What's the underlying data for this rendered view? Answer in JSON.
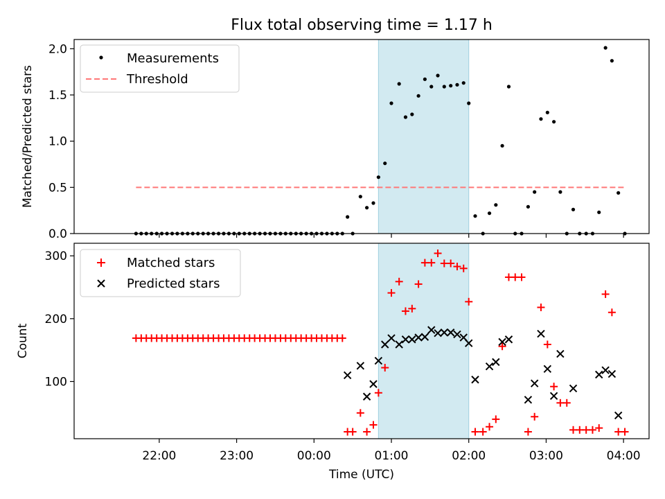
{
  "chart_data": {
    "type": "scatter",
    "title": "Flux total observing time = 1.17 h",
    "xlabel": "Time (UTC)",
    "x_unit": "hours since 00:00 UTC",
    "x_range": [
      -3.1,
      4.33
    ],
    "x_ticks": [
      {
        "value": -2,
        "label": "22:00"
      },
      {
        "value": -1,
        "label": "23:00"
      },
      {
        "value": 0,
        "label": "00:00"
      },
      {
        "value": 1,
        "label": "01:00"
      },
      {
        "value": 2,
        "label": "02:00"
      },
      {
        "value": 3,
        "label": "03:00"
      },
      {
        "value": 4,
        "label": "04:00"
      }
    ],
    "observing_window": [
      0.833,
      2.0
    ],
    "colors": {
      "matched": "#ff0000",
      "predicted": "#000000",
      "threshold": "#ff7777",
      "window": "#add8e6"
    },
    "top_panel": {
      "ylabel": "Matched/Predicted stars",
      "ylim": [
        0,
        2.1
      ],
      "y_ticks": [
        0.0,
        0.5,
        1.0,
        1.5,
        2.0
      ],
      "y_tick_labels": [
        "0.0",
        "0.5",
        "1.0",
        "1.5",
        "2.0"
      ],
      "legend": {
        "location": "upper left",
        "measurements_label": "Measurements",
        "threshold_label": "Threshold"
      },
      "threshold": {
        "value": 0.5,
        "x_start": -2.3,
        "x_end": 4.03
      },
      "measurements": [
        [
          -2.3,
          0
        ],
        [
          -2.233,
          0
        ],
        [
          -2.167,
          0
        ],
        [
          -2.1,
          0
        ],
        [
          -2.033,
          0
        ],
        [
          -1.967,
          0
        ],
        [
          -1.9,
          0
        ],
        [
          -1.833,
          0
        ],
        [
          -1.767,
          0
        ],
        [
          -1.7,
          0
        ],
        [
          -1.633,
          0
        ],
        [
          -1.567,
          0
        ],
        [
          -1.5,
          0
        ],
        [
          -1.433,
          0
        ],
        [
          -1.367,
          0
        ],
        [
          -1.3,
          0
        ],
        [
          -1.233,
          0
        ],
        [
          -1.167,
          0
        ],
        [
          -1.1,
          0
        ],
        [
          -1.033,
          0
        ],
        [
          -0.967,
          0
        ],
        [
          -0.9,
          0
        ],
        [
          -0.833,
          0
        ],
        [
          -0.767,
          0
        ],
        [
          -0.7,
          0
        ],
        [
          -0.633,
          0
        ],
        [
          -0.567,
          0
        ],
        [
          -0.5,
          0
        ],
        [
          -0.433,
          0
        ],
        [
          -0.367,
          0
        ],
        [
          -0.3,
          0
        ],
        [
          -0.233,
          0
        ],
        [
          -0.167,
          0
        ],
        [
          -0.1,
          0
        ],
        [
          -0.033,
          0
        ],
        [
          0.033,
          0
        ],
        [
          0.1,
          0
        ],
        [
          0.167,
          0
        ],
        [
          0.233,
          0
        ],
        [
          0.3,
          0
        ],
        [
          0.367,
          0
        ],
        [
          0.433,
          0.18
        ],
        [
          0.5,
          0
        ],
        [
          0.6,
          0.4
        ],
        [
          0.683,
          0.28
        ],
        [
          0.767,
          0.33
        ],
        [
          0.833,
          0.61
        ],
        [
          0.917,
          0.76
        ],
        [
          1.0,
          1.41
        ],
        [
          1.1,
          1.62
        ],
        [
          1.183,
          1.26
        ],
        [
          1.267,
          1.29
        ],
        [
          1.35,
          1.49
        ],
        [
          1.433,
          1.67
        ],
        [
          1.517,
          1.59
        ],
        [
          1.6,
          1.71
        ],
        [
          1.683,
          1.59
        ],
        [
          1.767,
          1.6
        ],
        [
          1.85,
          1.61
        ],
        [
          1.933,
          1.63
        ],
        [
          2.0,
          1.41
        ],
        [
          2.083,
          0.19
        ],
        [
          2.183,
          0
        ],
        [
          2.267,
          0.22
        ],
        [
          2.35,
          0.31
        ],
        [
          2.433,
          0.95
        ],
        [
          2.517,
          1.59
        ],
        [
          2.6,
          0
        ],
        [
          2.683,
          0
        ],
        [
          2.767,
          0.29
        ],
        [
          2.85,
          0.45
        ],
        [
          2.933,
          1.24
        ],
        [
          3.017,
          1.31
        ],
        [
          3.1,
          1.21
        ],
        [
          3.183,
          0.45
        ],
        [
          3.267,
          0
        ],
        [
          3.35,
          0.26
        ],
        [
          3.433,
          0
        ],
        [
          3.517,
          0
        ],
        [
          3.6,
          0
        ],
        [
          3.683,
          0.23
        ],
        [
          3.767,
          2.01
        ],
        [
          3.85,
          1.87
        ],
        [
          3.933,
          0.44
        ],
        [
          4.017,
          0
        ]
      ]
    },
    "bottom_panel": {
      "ylabel": "Count",
      "ylim": [
        9,
        320
      ],
      "y_ticks": [
        100,
        200,
        300
      ],
      "y_tick_labels": [
        "100",
        "200",
        "300"
      ],
      "legend": {
        "location": "upper left",
        "matched_label": "Matched stars",
        "predicted_label": "Predicted stars"
      },
      "matched_stars": [
        [
          -2.3,
          169
        ],
        [
          -2.233,
          169
        ],
        [
          -2.167,
          169
        ],
        [
          -2.1,
          169
        ],
        [
          -2.033,
          169
        ],
        [
          -1.967,
          169
        ],
        [
          -1.9,
          169
        ],
        [
          -1.833,
          169
        ],
        [
          -1.767,
          169
        ],
        [
          -1.7,
          169
        ],
        [
          -1.633,
          169
        ],
        [
          -1.567,
          169
        ],
        [
          -1.5,
          169
        ],
        [
          -1.433,
          169
        ],
        [
          -1.367,
          169
        ],
        [
          -1.3,
          169
        ],
        [
          -1.233,
          169
        ],
        [
          -1.167,
          169
        ],
        [
          -1.1,
          169
        ],
        [
          -1.033,
          169
        ],
        [
          -0.967,
          169
        ],
        [
          -0.9,
          169
        ],
        [
          -0.833,
          169
        ],
        [
          -0.767,
          169
        ],
        [
          -0.7,
          169
        ],
        [
          -0.633,
          169
        ],
        [
          -0.567,
          169
        ],
        [
          -0.5,
          169
        ],
        [
          -0.433,
          169
        ],
        [
          -0.367,
          169
        ],
        [
          -0.3,
          169
        ],
        [
          -0.233,
          169
        ],
        [
          -0.167,
          169
        ],
        [
          -0.1,
          169
        ],
        [
          -0.033,
          169
        ],
        [
          0.033,
          169
        ],
        [
          0.1,
          169
        ],
        [
          0.167,
          169
        ],
        [
          0.233,
          169
        ],
        [
          0.3,
          169
        ],
        [
          0.367,
          169
        ],
        [
          0.433,
          20
        ],
        [
          0.5,
          20
        ],
        [
          0.6,
          50
        ],
        [
          0.683,
          20
        ],
        [
          0.767,
          31
        ],
        [
          0.833,
          82
        ],
        [
          0.917,
          122
        ],
        [
          1.0,
          241
        ],
        [
          1.1,
          259
        ],
        [
          1.183,
          212
        ],
        [
          1.267,
          216
        ],
        [
          1.35,
          255
        ],
        [
          1.433,
          289
        ],
        [
          1.517,
          289
        ],
        [
          1.6,
          304
        ],
        [
          1.683,
          288
        ],
        [
          1.767,
          288
        ],
        [
          1.85,
          283
        ],
        [
          1.933,
          280
        ],
        [
          2.0,
          227
        ],
        [
          2.083,
          20
        ],
        [
          2.183,
          20
        ],
        [
          2.267,
          28
        ],
        [
          2.35,
          40
        ],
        [
          2.433,
          156
        ],
        [
          2.517,
          266
        ],
        [
          2.6,
          266
        ],
        [
          2.683,
          266
        ],
        [
          2.767,
          20
        ],
        [
          2.85,
          44
        ],
        [
          2.933,
          218
        ],
        [
          3.017,
          159
        ],
        [
          3.1,
          92
        ],
        [
          3.183,
          66
        ],
        [
          3.267,
          66
        ],
        [
          3.35,
          23
        ],
        [
          3.433,
          23
        ],
        [
          3.517,
          23
        ],
        [
          3.6,
          23
        ],
        [
          3.683,
          26
        ],
        [
          3.767,
          239
        ],
        [
          3.85,
          210
        ],
        [
          3.933,
          20
        ],
        [
          4.017,
          20
        ]
      ],
      "predicted_stars": [
        [
          0.433,
          110
        ],
        [
          0.6,
          125
        ],
        [
          0.683,
          76
        ],
        [
          0.767,
          96
        ],
        [
          0.833,
          133
        ],
        [
          0.917,
          159
        ],
        [
          1.0,
          169
        ],
        [
          1.1,
          159
        ],
        [
          1.183,
          167
        ],
        [
          1.267,
          167
        ],
        [
          1.35,
          170
        ],
        [
          1.433,
          171
        ],
        [
          1.517,
          182
        ],
        [
          1.6,
          177
        ],
        [
          1.683,
          178
        ],
        [
          1.767,
          178
        ],
        [
          1.85,
          175
        ],
        [
          1.933,
          170
        ],
        [
          2.0,
          161
        ],
        [
          2.083,
          103
        ],
        [
          2.267,
          124
        ],
        [
          2.35,
          131
        ],
        [
          2.433,
          163
        ],
        [
          2.517,
          167
        ],
        [
          2.767,
          71
        ],
        [
          2.85,
          97
        ],
        [
          2.933,
          176
        ],
        [
          3.017,
          120
        ],
        [
          3.1,
          77
        ],
        [
          3.183,
          144
        ],
        [
          3.35,
          89
        ],
        [
          3.683,
          111
        ],
        [
          3.767,
          118
        ],
        [
          3.85,
          112
        ],
        [
          3.933,
          46
        ]
      ]
    }
  }
}
